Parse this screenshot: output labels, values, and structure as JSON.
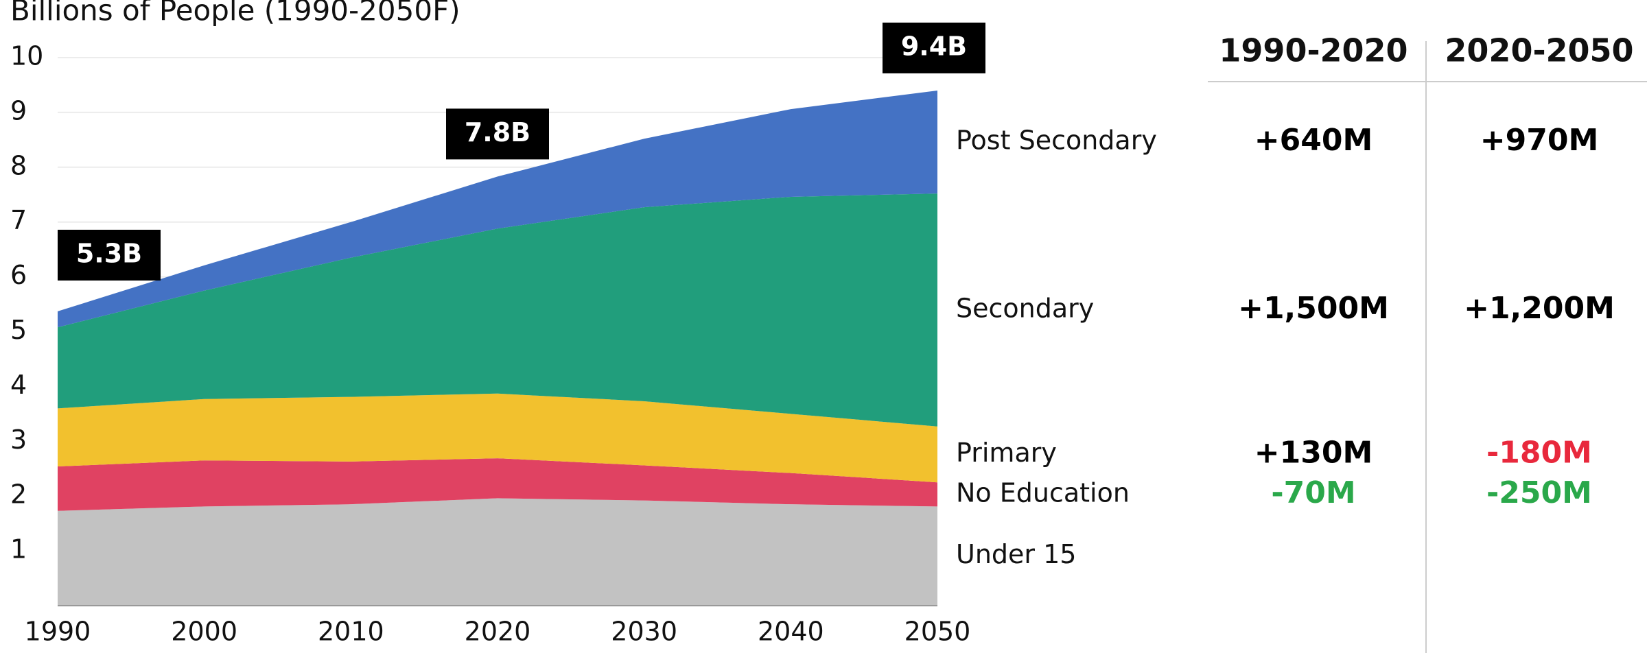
{
  "chart_data": {
    "type": "area",
    "stacked": true,
    "title": "Billions of People (1990-2050F)",
    "x": [
      1990,
      2000,
      2010,
      2020,
      2030,
      2040,
      2050
    ],
    "xlim": [
      1990,
      2050
    ],
    "xticks": [
      1990,
      2000,
      2010,
      2020,
      2030,
      2040,
      2050
    ],
    "ylim": [
      0,
      10
    ],
    "yticks": [
      1,
      2,
      3,
      4,
      5,
      6,
      7,
      8,
      9,
      10
    ],
    "series": [
      {
        "name": "Under 15",
        "color": "#c2c2c2",
        "values": [
          1.73,
          1.81,
          1.85,
          1.96,
          1.92,
          1.85,
          1.81
        ]
      },
      {
        "name": "No Education",
        "color": "#e04262",
        "values": [
          0.81,
          0.84,
          0.78,
          0.73,
          0.64,
          0.57,
          0.44
        ]
      },
      {
        "name": "Primary",
        "color": "#f2c12e",
        "values": [
          1.06,
          1.12,
          1.18,
          1.18,
          1.17,
          1.08,
          1.02
        ]
      },
      {
        "name": "Secondary",
        "color": "#219e7c",
        "values": [
          1.48,
          1.98,
          2.54,
          3.01,
          3.54,
          3.96,
          4.25
        ]
      },
      {
        "name": "Post Secondary",
        "color": "#4472c4",
        "values": [
          0.29,
          0.46,
          0.65,
          0.95,
          1.25,
          1.6,
          1.88
        ]
      }
    ],
    "annotations": [
      {
        "text": "5.3B",
        "x": 1990
      },
      {
        "text": "7.8B",
        "x": 2020
      },
      {
        "text": "9.4B",
        "x": 2050
      }
    ]
  },
  "table": {
    "columns": [
      "1990-2020",
      "2020-2050"
    ],
    "rows": [
      [
        "+640M",
        "+970M"
      ],
      [
        "+1,500M",
        "+1,200M"
      ],
      [
        "+130M",
        "-180M"
      ],
      [
        "-70M",
        "-250M"
      ]
    ],
    "cell_colors": [
      [
        "#000000",
        "#000000"
      ],
      [
        "#000000",
        "#000000"
      ],
      [
        "#000000",
        "#e8283c"
      ],
      [
        "#2aa84a",
        "#2aa84a"
      ]
    ]
  }
}
